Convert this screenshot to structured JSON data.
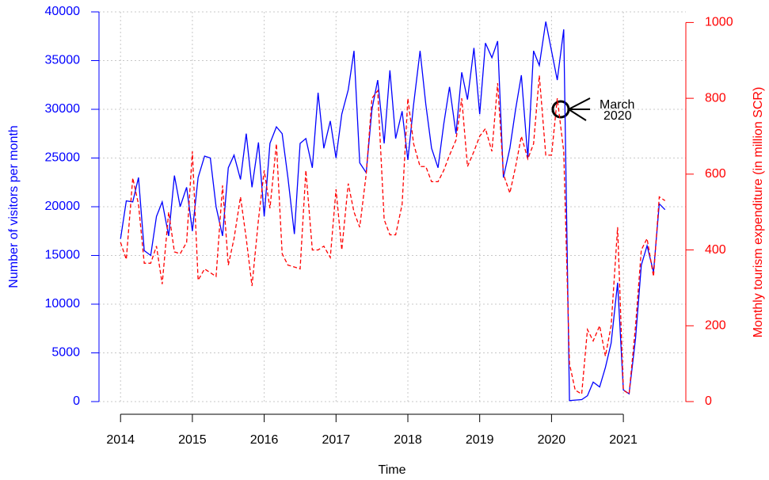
{
  "chart_data": {
    "type": "line",
    "x_label": "Time",
    "y_label": "Number of visitors per month",
    "y2_label": "Monthly tourism expenditure (in million SCR)",
    "annotation": [
      "March",
      "2020"
    ],
    "xlim": [
      2013.7,
      2021.87
    ],
    "xticks": [
      2014,
      2015,
      2016,
      2017,
      2018,
      2019,
      2020,
      2021
    ],
    "ylim": [
      0,
      40000
    ],
    "yticks": [
      0,
      5000,
      10000,
      15000,
      20000,
      25000,
      30000,
      35000,
      40000
    ],
    "y2lim": [
      0,
      1028
    ],
    "y2ticks": [
      0,
      200,
      400,
      600,
      800,
      1000
    ],
    "grid": true,
    "x": [
      2014.0,
      2014.08,
      2014.17,
      2014.25,
      2014.33,
      2014.42,
      2014.5,
      2014.58,
      2014.67,
      2014.75,
      2014.83,
      2014.92,
      2015.0,
      2015.08,
      2015.17,
      2015.25,
      2015.33,
      2015.42,
      2015.5,
      2015.58,
      2015.67,
      2015.75,
      2015.83,
      2015.92,
      2016.0,
      2016.08,
      2016.17,
      2016.25,
      2016.33,
      2016.42,
      2016.5,
      2016.58,
      2016.67,
      2016.75,
      2016.83,
      2016.92,
      2017.0,
      2017.08,
      2017.17,
      2017.25,
      2017.33,
      2017.42,
      2017.5,
      2017.58,
      2017.67,
      2017.75,
      2017.83,
      2017.92,
      2018.0,
      2018.08,
      2018.17,
      2018.25,
      2018.33,
      2018.42,
      2018.5,
      2018.58,
      2018.67,
      2018.75,
      2018.83,
      2018.92,
      2019.0,
      2019.08,
      2019.17,
      2019.25,
      2019.33,
      2019.42,
      2019.5,
      2019.58,
      2019.67,
      2019.75,
      2019.83,
      2019.92,
      2020.0,
      2020.08,
      2020.17,
      2020.25,
      2020.33,
      2020.42,
      2020.5,
      2020.58,
      2020.67,
      2020.75,
      2020.83,
      2020.92,
      2021.0,
      2021.08,
      2021.17,
      2021.25,
      2021.33,
      2021.42,
      2021.5,
      2021.58
    ],
    "series": [
      {
        "color": "#0000ff",
        "dash": false,
        "axis": "y",
        "values": [
          16700,
          20600,
          20500,
          23000,
          15500,
          15000,
          19000,
          20500,
          17000,
          23200,
          20000,
          22000,
          17500,
          23000,
          25200,
          25000,
          20000,
          17000,
          24000,
          25300,
          22800,
          27500,
          22000,
          26600,
          19000,
          26500,
          28200,
          27500,
          23000,
          17200,
          26500,
          27000,
          24000,
          31700,
          26000,
          28800,
          25000,
          29500,
          32000,
          36000,
          24500,
          23500,
          30000,
          33000,
          26500,
          34000,
          27000,
          29800,
          24800,
          30500,
          36000,
          30500,
          26000,
          24000,
          28500,
          32300,
          27500,
          33800,
          31000,
          36300,
          29500,
          36800,
          35300,
          37000,
          23000,
          26000,
          30000,
          33500,
          25000,
          36000,
          34500,
          39000,
          36000,
          33000,
          38200,
          100,
          150,
          200,
          600,
          2000,
          1500,
          3500,
          6000,
          12200,
          1200,
          800,
          6500,
          14000,
          16000,
          13300,
          20300,
          19700
        ]
      },
      {
        "color": "#ff0000",
        "dash": true,
        "axis": "y2",
        "values": [
          420,
          375,
          590,
          520,
          365,
          365,
          410,
          310,
          500,
          395,
          390,
          420,
          660,
          320,
          350,
          340,
          330,
          570,
          360,
          430,
          540,
          430,
          305,
          480,
          610,
          510,
          680,
          390,
          360,
          355,
          350,
          610,
          400,
          400,
          410,
          380,
          560,
          400,
          575,
          500,
          460,
          600,
          800,
          820,
          480,
          440,
          440,
          520,
          800,
          680,
          620,
          620,
          580,
          580,
          610,
          650,
          690,
          800,
          620,
          660,
          700,
          720,
          660,
          840,
          600,
          550,
          620,
          700,
          640,
          680,
          860,
          650,
          650,
          800,
          660,
          100,
          30,
          20,
          190,
          160,
          200,
          120,
          200,
          460,
          30,
          20,
          200,
          400,
          430,
          330,
          540,
          530
        ]
      }
    ]
  }
}
